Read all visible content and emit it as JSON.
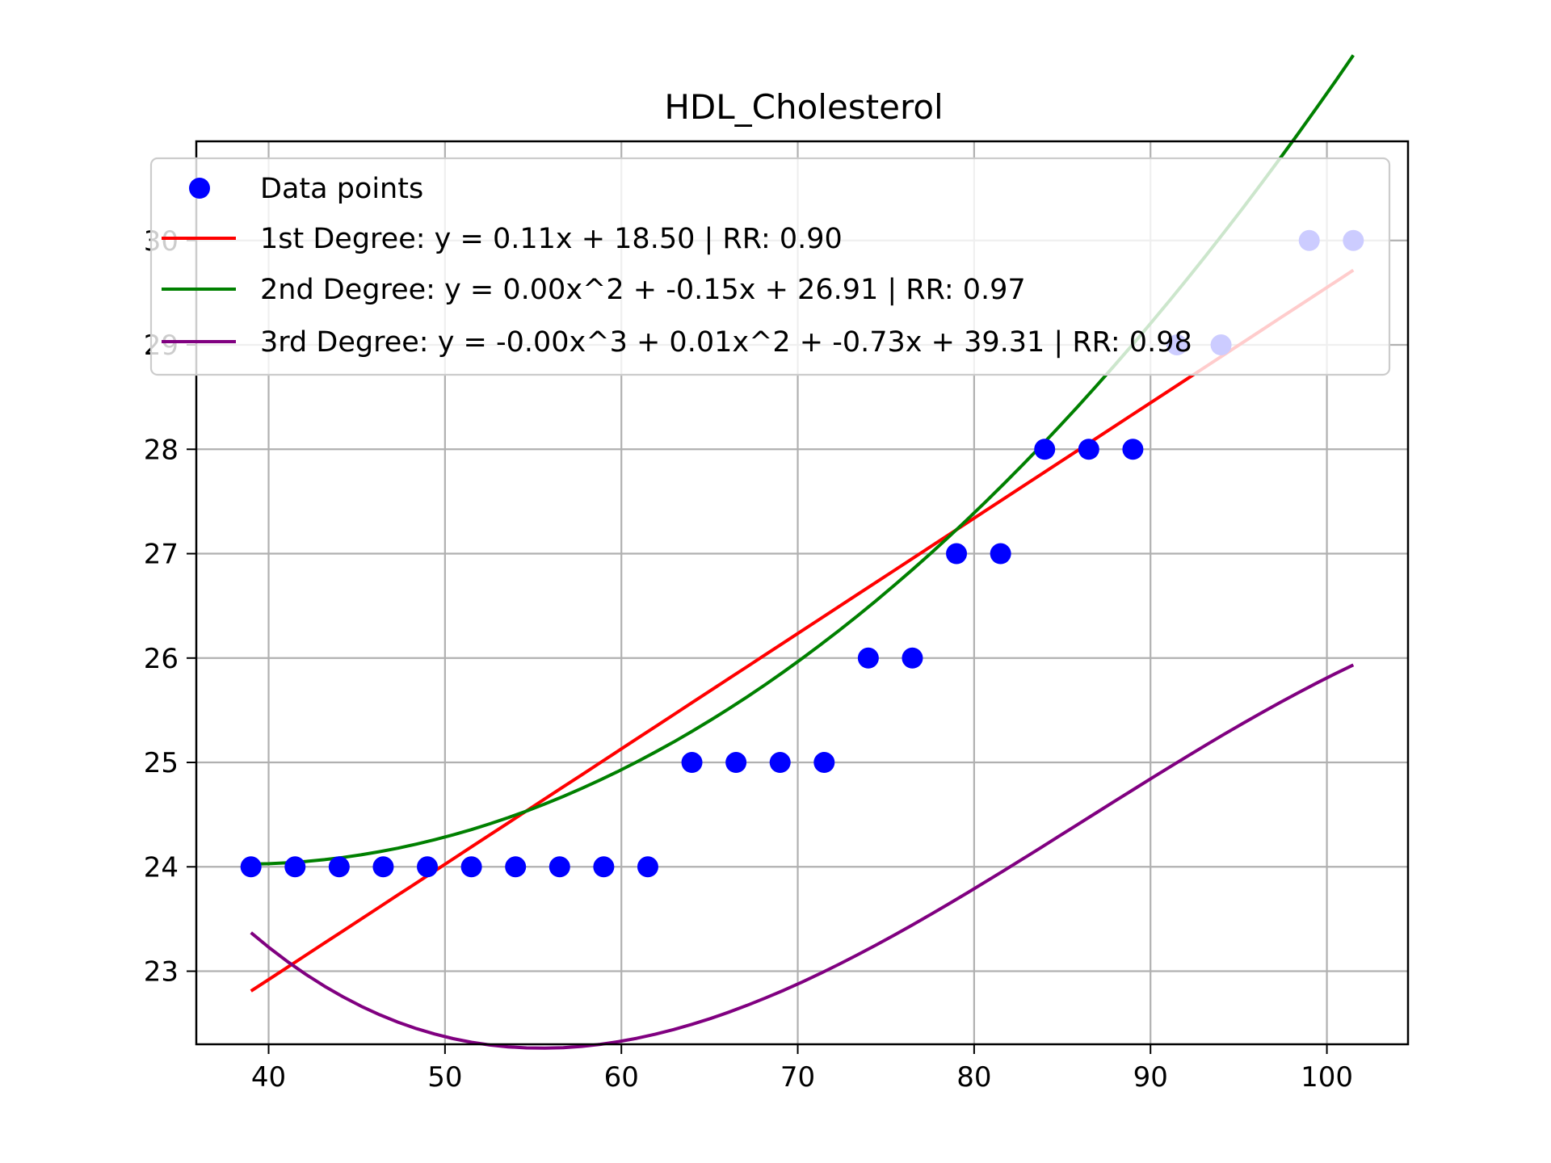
{
  "chart_data": {
    "type": "scatter",
    "title": "HDL_Cholesterol",
    "xlabel": "",
    "ylabel": "",
    "xlim": [
      35.9,
      104.6
    ],
    "ylim": [
      22.3,
      30.95
    ],
    "x_ticks": [
      40,
      50,
      60,
      70,
      80,
      90,
      100
    ],
    "y_ticks": [
      23,
      24,
      25,
      26,
      27,
      28,
      29,
      30
    ],
    "grid": true,
    "legend_position": "top-left",
    "points": {
      "name": "Data points",
      "color": "#0000ff",
      "x": [
        39.0,
        41.5,
        44.0,
        46.5,
        49.0,
        51.5,
        54.0,
        56.5,
        59.0,
        61.5,
        64.0,
        66.5,
        69.0,
        71.5,
        74.0,
        76.5,
        79.0,
        81.5,
        84.0,
        86.5,
        89.0,
        91.5,
        94.0,
        99.0,
        101.5
      ],
      "y": [
        24,
        24,
        24,
        24,
        24,
        24,
        24,
        24,
        24,
        24,
        25,
        25,
        25,
        25,
        26,
        26,
        27,
        27,
        28,
        28,
        28,
        29,
        29,
        30,
        30
      ]
    },
    "fits": [
      {
        "name": "1st Degree: y = 0.11x + 18.50 | RR: 0.90",
        "color": "#ff0000",
        "coefficients": [
          18.5,
          0.1105
        ]
      },
      {
        "name": "2nd Degree: y = 0.00x^2 + -0.15x + 26.91 | RR: 0.97",
        "color": "#008000",
        "coefficients": [
          26.91,
          -0.15,
          0.00195
        ]
      },
      {
        "name": "3rd Degree: y = -0.00x^3 + 0.01x^2 + -0.73x + 39.31 | RR: 0.98",
        "color": "#800080",
        "coefficients": [
          39.31,
          -0.73,
          0.0097,
          -3.75e-05
        ]
      }
    ]
  }
}
